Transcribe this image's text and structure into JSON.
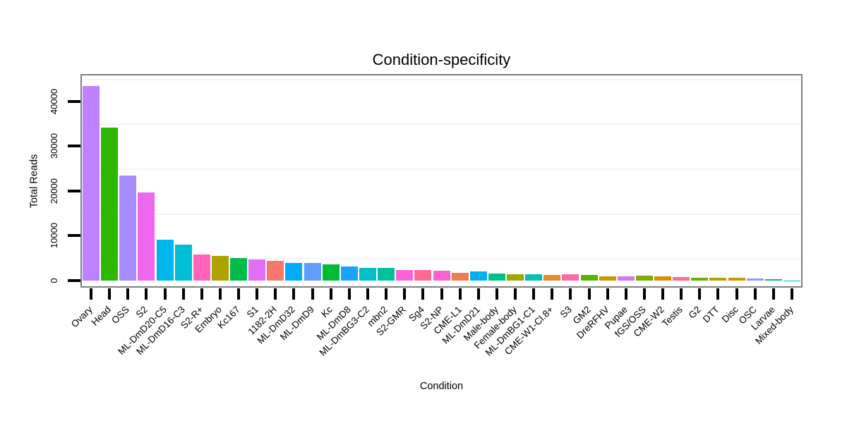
{
  "page": {
    "background": "#ffffff",
    "frame_color": "#7e7e7e",
    "tick_color": "#000000",
    "gridline_color": "#f5f5f5"
  },
  "chart_data": {
    "type": "bar",
    "title": "Condition-specificity",
    "xlabel": "Condition",
    "ylabel": "Total Reads",
    "ylim": [
      0,
      45500
    ],
    "grid": "horizontal faint lines every 5000 (minor positions 5000-45000), white panel, gray frame",
    "legend": "none",
    "yticks": {
      "values": [
        0,
        10000,
        20000,
        30000,
        40000
      ],
      "labels": [
        "0",
        "10000",
        "20000",
        "30000",
        "40000"
      ]
    },
    "gridline_values": [
      5000,
      15000,
      25000,
      35000,
      45000
    ],
    "categories": [
      "Ovary",
      "Head",
      "OSS",
      "S2",
      "ML-DmD20-C5",
      "ML-DmD16-C3",
      "S2-R+",
      "Embryo",
      "Kc167",
      "S1",
      "1182-2H",
      "ML-DmD32",
      "ML-DmD9",
      "Kc",
      "ML-DmD8",
      "ML-DmBG3-C2",
      "mbn2",
      "S2-GMR",
      "Sg4",
      "S2-NP",
      "CME-L1",
      "ML-DmD21",
      "Male-body",
      "Female-body",
      "ML-DmBG1-C1",
      "CME-W1-Cl.8+",
      "S3",
      "GM2",
      "DreRFHV",
      "Pupae",
      "fGS/OSS",
      "CME-W2",
      "Testis",
      "G2",
      "DTT",
      "Disc",
      "OSC",
      "Larvae",
      "Mixed-body"
    ],
    "values": [
      43350,
      34150,
      23350,
      19700,
      9150,
      8000,
      5750,
      5550,
      5100,
      4700,
      4350,
      3950,
      3900,
      3550,
      3130,
      2880,
      2860,
      2340,
      2300,
      2250,
      1800,
      2100,
      1600,
      1350,
      1350,
      1200,
      1350,
      1200,
      1000,
      1000,
      1130,
      930,
      760,
      660,
      660,
      650,
      550,
      300,
      50
    ],
    "bar_colors": [
      "#BE81FF",
      "#2EB600",
      "#A58CFF",
      "#EF67EC",
      "#00B6EA",
      "#00BED6",
      "#FF63BC",
      "#ADA200",
      "#00BC4D",
      "#E36EF6",
      "#F8766D",
      "#00ABFD",
      "#619CFF",
      "#00BA38",
      "#1BA3FF",
      "#00BFC9",
      "#00C19D",
      "#FA62DA",
      "#FF6A92",
      "#FF61CE",
      "#EF7D51",
      "#00AFF0",
      "#00C188",
      "#9FA800",
      "#00C1B2",
      "#E68A2B",
      "#FC6BA6",
      "#55B400",
      "#C79800",
      "#D078F5",
      "#7CAD00",
      "#DB8E00",
      "#FC6E8F",
      "#6DB000",
      "#B4A000",
      "#D19300",
      "#8F9BFF",
      "#00BE70",
      "#00C1AD"
    ]
  }
}
